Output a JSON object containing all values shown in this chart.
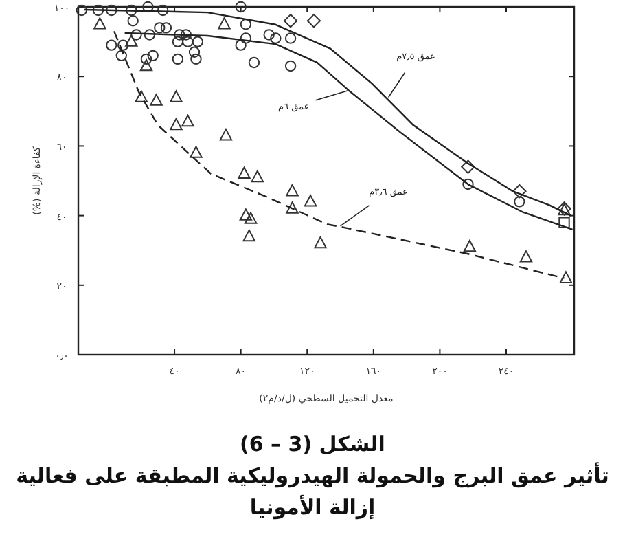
{
  "chart_data": {
    "type": "scatter",
    "xlabel": "معدل التحميل السطحي (ل/د/م٢)",
    "ylabel": "كفاءة الإزالة (%)",
    "xlim": [
      -18,
      281
    ],
    "ylim": [
      0,
      100
    ],
    "xticks": [
      {
        "value": 40,
        "label": "٤٠"
      },
      {
        "value": 80,
        "label": "٨٠"
      },
      {
        "value": 120,
        "label": "١٢٠"
      },
      {
        "value": 160,
        "label": "١٦٠"
      },
      {
        "value": 200,
        "label": "٢٠٠"
      },
      {
        "value": 240,
        "label": "٢٤٠"
      }
    ],
    "yticks": [
      {
        "value": 0,
        "label": "٠٫٠"
      },
      {
        "value": 20,
        "label": "٢٠"
      },
      {
        "value": 40,
        "label": "٤٠"
      },
      {
        "value": 60,
        "label": "٦٠"
      },
      {
        "value": 80,
        "label": "٨٠"
      },
      {
        "value": 100,
        "label": "١٠٠"
      }
    ],
    "series": [
      {
        "marker": "circle",
        "color": "#333333",
        "x": [
          -16,
          -6,
          2,
          14,
          24,
          33,
          15,
          17,
          25,
          31,
          35,
          43,
          47,
          48,
          2,
          9,
          8,
          23,
          27,
          42,
          42,
          52,
          53,
          54,
          80,
          83,
          83,
          80,
          88,
          97,
          101,
          110,
          110,
          217,
          248
        ],
        "values": [
          99,
          99,
          99,
          99,
          100,
          99,
          96,
          92,
          92,
          94,
          94,
          92,
          92,
          90,
          89,
          89,
          86,
          85,
          86,
          90,
          85,
          87,
          85,
          90,
          100,
          95,
          91,
          89,
          84,
          92,
          91,
          91,
          83,
          49,
          44
        ]
      },
      {
        "marker": "diamond",
        "color": "#333333",
        "x": [
          110,
          124,
          217,
          248,
          275
        ],
        "values": [
          96,
          96,
          54,
          47,
          42
        ]
      },
      {
        "marker": "triangle",
        "color": "#333333",
        "x": [
          -5,
          14,
          23,
          20,
          29,
          41,
          41,
          48,
          53,
          71,
          70,
          82,
          90,
          111,
          122,
          111,
          83,
          86,
          85,
          128,
          218,
          252,
          276,
          275
        ],
        "values": [
          95,
          90,
          83,
          74,
          73,
          74,
          66,
          67,
          58,
          63,
          95,
          52,
          51,
          47,
          44,
          42,
          40,
          39,
          34,
          32,
          31,
          28,
          22,
          41.5
        ]
      },
      {
        "marker": "square",
        "color": "#333333",
        "x": [
          275
        ],
        "values": [
          38
        ]
      },
      {
        "type": "line",
        "line_style": "solid",
        "color": "#222222",
        "x": [
          -14.5,
          60,
          101,
          134,
          159,
          184,
          217,
          244,
          266,
          279
        ],
        "values": [
          99.2,
          98.4,
          94.9,
          88,
          78,
          66,
          55,
          47,
          43,
          40
        ]
      },
      {
        "type": "line",
        "line_style": "solid",
        "color": "#222222",
        "x": [
          10,
          60,
          101,
          126,
          145,
          176,
          217,
          250,
          280
        ],
        "values": [
          92.5,
          91.7,
          89.3,
          84,
          76,
          64,
          49,
          41,
          36
        ]
      },
      {
        "type": "line",
        "line_style": "dashed",
        "color": "#222222",
        "x": [
          3.6,
          18.5,
          30,
          62,
          95,
          132,
          140,
          217,
          275
        ],
        "values": [
          93,
          75.5,
          66,
          52,
          45.5,
          37.5,
          36.8,
          29,
          22
        ]
      }
    ],
    "annotations": [
      {
        "text": "عمق ٧٫٥م",
        "x": 169,
        "y": 74
      },
      {
        "text": "عمق ٦م",
        "x": 145,
        "y": 76
      },
      {
        "text": "عمق ٣٫٦م",
        "x": 140,
        "y": 37
      },
      "الشكل (3 – 6)",
      "تأثير عمق البرج والحمولة الهيدروليكية المطبقة على فعالية إزالة الأمونيا"
    ]
  }
}
